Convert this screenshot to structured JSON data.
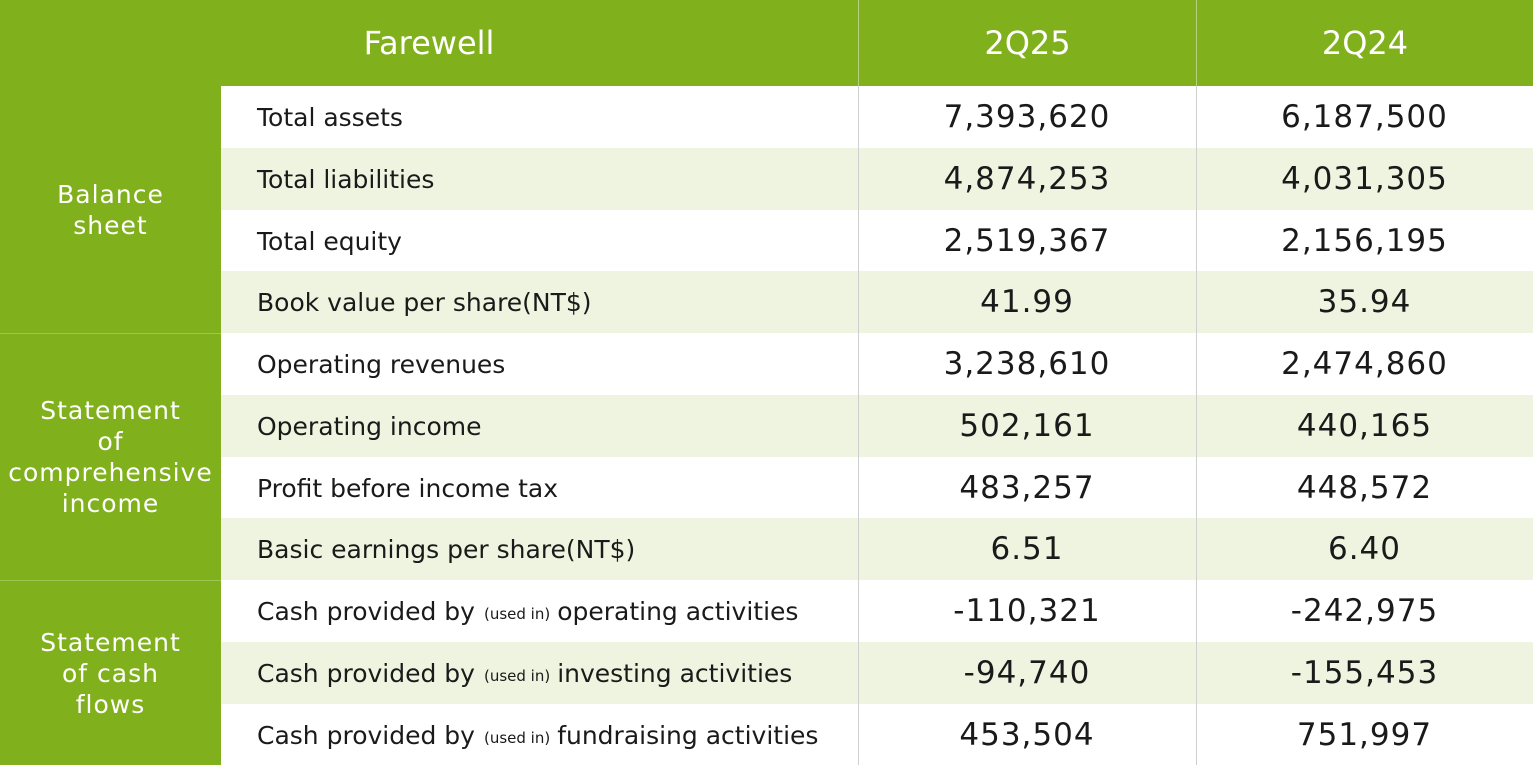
{
  "header": {
    "title": "Farewell",
    "col_2q25": "2Q25",
    "col_2q24": "2Q24"
  },
  "categories": {
    "balance": [
      "Balance",
      "sheet"
    ],
    "income": [
      "Statement",
      "of",
      "comprehensive",
      "income"
    ],
    "cash": [
      "Statement",
      "of cash",
      "flows"
    ]
  },
  "rows": [
    {
      "label": "Total assets",
      "v2q25": "7,393,620",
      "v2q24": "6,187,500"
    },
    {
      "label": "Total liabilities",
      "v2q25": "4,874,253",
      "v2q24": "4,031,305"
    },
    {
      "label": "Total equity",
      "v2q25": "2,519,367",
      "v2q24": "2,156,195"
    },
    {
      "label": "Book value per share(NT$)",
      "v2q25": "41.99",
      "v2q24": "35.94"
    },
    {
      "label": "Operating revenues",
      "v2q25": "3,238,610",
      "v2q24": "2,474,860"
    },
    {
      "label": "Operating income",
      "v2q25": "502,161",
      "v2q24": "440,165"
    },
    {
      "label": "Profit before income tax",
      "v2q25": "483,257",
      "v2q24": "448,572"
    },
    {
      "label": "Basic earnings per share(NT$)",
      "v2q25": "6.51",
      "v2q24": "6.40"
    },
    {
      "label_pre": "Cash provided by",
      "label_small": "(used in)",
      "label_post": "operating activities",
      "v2q25": "-110,321",
      "v2q24": "-242,975"
    },
    {
      "label_pre": "Cash provided by",
      "label_small": "(used in)",
      "label_post": "investing activities",
      "v2q25": "-94,740",
      "v2q24": "-155,453"
    },
    {
      "label_pre": "Cash provided by",
      "label_small": "(used in)",
      "label_post": "fundraising activities",
      "v2q25": "453,504",
      "v2q24": "751,997"
    }
  ],
  "colors": {
    "header_green": "#80b11c",
    "alt_row": "#eef4df"
  }
}
